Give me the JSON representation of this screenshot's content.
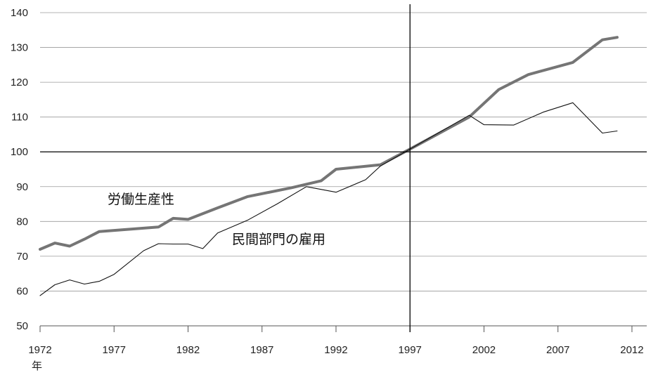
{
  "chart_data": {
    "type": "line",
    "x_unit": "年",
    "xlim": [
      1972,
      2013
    ],
    "ylim": [
      50,
      140
    ],
    "x_ticks": [
      1972,
      1977,
      1982,
      1987,
      1992,
      1997,
      2002,
      2007,
      2012
    ],
    "y_ticks": [
      50,
      60,
      70,
      80,
      90,
      100,
      110,
      120,
      130,
      140
    ],
    "grid": true,
    "reference_lines": {
      "x": 1997,
      "y": 100
    },
    "series": [
      {
        "name": "労働生産性",
        "color": "#757575",
        "x": [
          1972,
          1973,
          1974,
          1975,
          1976,
          1980,
          1981,
          1982,
          1984,
          1986,
          1989,
          1991,
          1992,
          1995,
          1997,
          2001,
          2003,
          2005,
          2008,
          2010,
          2011
        ],
        "values": [
          72,
          73.8,
          72.9,
          74.9,
          77.1,
          78.4,
          80.9,
          80.6,
          83.9,
          87.1,
          89.7,
          91.7,
          95,
          96.3,
          100.8,
          110,
          117.9,
          122.2,
          125.7,
          132.2,
          132.9
        ]
      },
      {
        "name": "民間部門の雇用",
        "color": "#111111",
        "x": [
          1972,
          1973,
          1974,
          1975,
          1976,
          1977,
          1979,
          1980,
          1981,
          1982,
          1983,
          1984,
          1986,
          1988,
          1990,
          1992,
          1994,
          1995,
          1997,
          2001,
          2002,
          2004,
          2006,
          2008,
          2010,
          2011
        ],
        "values": [
          58.7,
          61.8,
          63.2,
          62,
          62.8,
          64.8,
          71.6,
          73.6,
          73.5,
          73.5,
          72.2,
          76.7,
          80.3,
          85,
          90,
          88.4,
          92,
          95.9,
          100.8,
          110.5,
          107.8,
          107.7,
          111.4,
          114.1,
          105.4,
          106
        ]
      }
    ]
  }
}
